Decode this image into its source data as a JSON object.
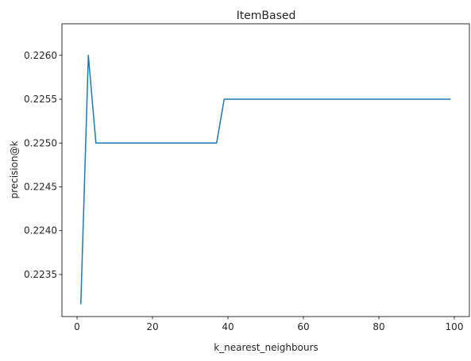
{
  "chart_data": {
    "type": "line",
    "title": "ItemBased",
    "xlabel": "k_nearest_neighbours",
    "ylabel": "precision@k",
    "xlim": [
      -4,
      104
    ],
    "ylim": [
      0.22302,
      0.22636
    ],
    "xticks": [
      0,
      20,
      40,
      60,
      80,
      100
    ],
    "xtick_labels": [
      "0",
      "20",
      "40",
      "60",
      "80",
      "100"
    ],
    "yticks": [
      0.2235,
      0.224,
      0.2245,
      0.225,
      0.2255,
      0.226
    ],
    "ytick_labels": [
      "0.2235",
      "0.2240",
      "0.2245",
      "0.2250",
      "0.2255",
      "0.2260"
    ],
    "grid": false,
    "legend": "none",
    "series": [
      {
        "color": "#1f77b4",
        "x": [
          1,
          3,
          5,
          7,
          9,
          11,
          13,
          15,
          17,
          19,
          21,
          23,
          25,
          27,
          29,
          31,
          33,
          35,
          37,
          39,
          41,
          43,
          45,
          47,
          49,
          51,
          53,
          55,
          57,
          59,
          61,
          63,
          65,
          67,
          69,
          71,
          73,
          75,
          77,
          79,
          81,
          83,
          85,
          87,
          89,
          91,
          93,
          95,
          97,
          99
        ],
        "y": [
          0.22316,
          0.226,
          0.225,
          0.225,
          0.225,
          0.225,
          0.225,
          0.225,
          0.225,
          0.225,
          0.225,
          0.225,
          0.225,
          0.225,
          0.225,
          0.225,
          0.225,
          0.225,
          0.225,
          0.2255,
          0.2255,
          0.2255,
          0.2255,
          0.2255,
          0.2255,
          0.2255,
          0.2255,
          0.2255,
          0.2255,
          0.2255,
          0.2255,
          0.2255,
          0.2255,
          0.2255,
          0.2255,
          0.2255,
          0.2255,
          0.2255,
          0.2255,
          0.2255,
          0.2255,
          0.2255,
          0.2255,
          0.2255,
          0.2255,
          0.2255,
          0.2255,
          0.2255,
          0.2255,
          0.2255
        ]
      }
    ]
  }
}
